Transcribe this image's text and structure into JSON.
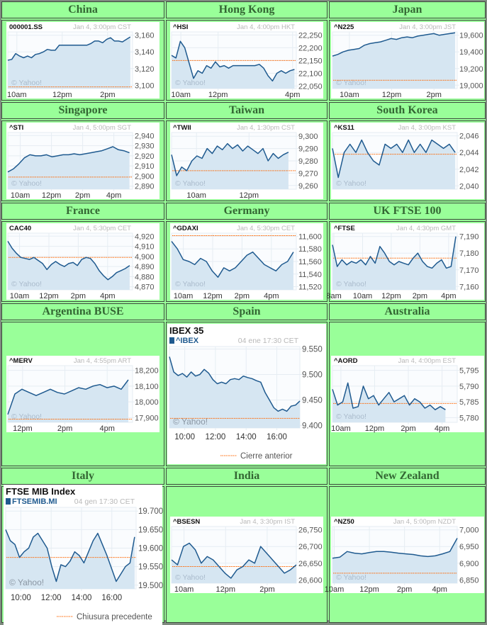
{
  "colors": {
    "header_bg": "#99ff99",
    "header_text": "#336633",
    "line": "#1f5a8f",
    "fill": "#d6e6f2",
    "prev_close": "#ff6600",
    "grid": "#e6edf3"
  },
  "watermark": "© Yahoo!",
  "chart_data": [
    {
      "type": "line",
      "region": "China",
      "ticker": "000001.SS",
      "timestamp": "Jan 4, 3:00pm CST",
      "format": "std",
      "ylim": [
        3096,
        3164
      ],
      "yticks": [
        3160,
        3140,
        3120,
        3100
      ],
      "ytick_labels": [
        "3,160",
        "3,140",
        "3,120",
        "3,100"
      ],
      "prev_close": 3098,
      "xlim": [
        9.6,
        15.1
      ],
      "xticks": [
        {
          "t": 10,
          "label": "10am"
        },
        {
          "t": 12,
          "label": "12pm"
        },
        {
          "t": 14,
          "label": "2pm"
        }
      ],
      "data_end": 15.0,
      "values": [
        3130,
        3131,
        3138,
        3135,
        3133,
        3135,
        3133,
        3137,
        3138,
        3140,
        3143,
        3142,
        3142,
        3148,
        3148,
        3148,
        3148,
        3148,
        3148,
        3148,
        3148,
        3150,
        3153,
        3153,
        3151,
        3155,
        3157,
        3153,
        3153,
        3152,
        3155,
        3158
      ]
    },
    {
      "type": "line",
      "region": "Hong Kong",
      "ticker": "^HSI",
      "timestamp": "Jan 4, 4:00pm HKT",
      "format": "std",
      "ylim": [
        22040,
        22262
      ],
      "yticks": [
        22250,
        22200,
        22150,
        22100,
        22050
      ],
      "ytick_labels": [
        "22,250",
        "22,200",
        "22,150",
        "22,100",
        "22,050"
      ],
      "prev_close": 22150,
      "xlim": [
        9.5,
        16.2
      ],
      "xticks": [
        {
          "t": 10,
          "label": "10am"
        },
        {
          "t": 12,
          "label": "12pm"
        },
        {
          "t": 16,
          "label": "4pm"
        }
      ],
      "data_end": 16.1,
      "values": [
        22170,
        22160,
        22225,
        22200,
        22140,
        22080,
        22110,
        22100,
        22130,
        22120,
        22145,
        22125,
        22130,
        22120,
        22130,
        22130,
        22130,
        22130,
        22130,
        22130,
        22135,
        22120,
        22090,
        22070,
        22100,
        22110,
        22100,
        22110,
        22115
      ]
    },
    {
      "type": "line",
      "region": "Japan",
      "ticker": "^N225",
      "timestamp": "Jan 4, 3:00pm JST",
      "format": "std",
      "ylim": [
        18960,
        19640
      ],
      "yticks": [
        19600,
        19400,
        19200,
        19000
      ],
      "ytick_labels": [
        "19,600",
        "19,400",
        "19,200",
        "19,000"
      ],
      "prev_close": 19060,
      "xlim": [
        9.2,
        15.1
      ],
      "xticks": [
        {
          "t": 10,
          "label": "10am"
        },
        {
          "t": 12,
          "label": "12pm"
        },
        {
          "t": 14,
          "label": "2pm"
        }
      ],
      "data_end": 15.0,
      "values": [
        19350,
        19370,
        19400,
        19420,
        19430,
        19440,
        19480,
        19500,
        19510,
        19520,
        19540,
        19560,
        19550,
        19570,
        19580,
        19570,
        19590,
        19600,
        19610,
        19620,
        19600,
        19610,
        19620,
        19630
      ]
    },
    {
      "type": "line",
      "region": "Singapore",
      "ticker": "^STI",
      "timestamp": "Jan 4, 5:00pm SGT",
      "format": "std",
      "ylim": [
        2887,
        2943
      ],
      "yticks": [
        2940,
        2930,
        2920,
        2910,
        2900,
        2890
      ],
      "ytick_labels": [
        "2,940",
        "2,930",
        "2,920",
        "2,910",
        "2,900",
        "2,890"
      ],
      "prev_close": 2899,
      "xlim": [
        9.2,
        17.2
      ],
      "xticks": [
        {
          "t": 10,
          "label": "10am"
        },
        {
          "t": 12,
          "label": "12pm"
        },
        {
          "t": 14,
          "label": "2pm"
        },
        {
          "t": 16,
          "label": "4pm"
        }
      ],
      "data_end": 17.0,
      "values": [
        2904,
        2907,
        2912,
        2918,
        2921,
        2920,
        2920,
        2921,
        2919,
        2920,
        2921,
        2921,
        2922,
        2921,
        2922,
        2923,
        2924,
        2925,
        2927,
        2929,
        2926,
        2925,
        2923
      ]
    },
    {
      "type": "line",
      "region": "Taiwan",
      "ticker": "^TWII",
      "timestamp": "Jan 4, 1:30pm CST",
      "format": "std",
      "ylim": [
        9257,
        9303
      ],
      "yticks": [
        9300,
        9290,
        9280,
        9270,
        9260
      ],
      "ytick_labels": [
        "9,300",
        "9,290",
        "9,280",
        "9,270",
        "9,260"
      ],
      "prev_close": 9272,
      "xlim": [
        9.05,
        13.8
      ],
      "xticks": [
        {
          "t": 10,
          "label": "10am"
        },
        {
          "t": 12,
          "label": "12pm"
        }
      ],
      "data_end": 13.5,
      "values": [
        9285,
        9268,
        9275,
        9272,
        9280,
        9284,
        9282,
        9290,
        9286,
        9292,
        9289,
        9294,
        9290,
        9293,
        9288,
        9292,
        9289,
        9286,
        9290,
        9280,
        9286,
        9282,
        9285,
        9287
      ]
    },
    {
      "type": "line",
      "region": "South Korea",
      "ticker": "^KS11",
      "timestamp": "Jan 4, 3:00pm KST",
      "format": "std",
      "ylim": [
        2039.6,
        2046.4
      ],
      "yticks": [
        2046,
        2044,
        2042,
        2040
      ],
      "ytick_labels": [
        "2,046",
        "2,044",
        "2,042",
        "2,040"
      ],
      "prev_close": 2043.8,
      "xlim": [
        9.0,
        15.1
      ],
      "xticks": [],
      "data_end": 15.0,
      "values": [
        2044.5,
        2041,
        2044,
        2045,
        2044,
        2045.5,
        2044,
        2043,
        2042.5,
        2045,
        2044.5,
        2045,
        2044,
        2045.5,
        2044,
        2045,
        2044,
        2045.5,
        2045,
        2044.5,
        2045,
        2044
      ]
    },
    {
      "type": "line",
      "region": "France",
      "ticker": "CAC40",
      "timestamp": "Jan 4, 5:30pm CET",
      "format": "std",
      "ylim": [
        4867,
        4923
      ],
      "yticks": [
        4920,
        4910,
        4900,
        4890,
        4880,
        4870
      ],
      "ytick_labels": [
        "4,920",
        "4,910",
        "4,900",
        "4,890",
        "4,880",
        "4,870"
      ],
      "prev_close": 4899,
      "xlim": [
        9.2,
        17.7
      ],
      "xticks": [
        {
          "t": 10,
          "label": "10am"
        },
        {
          "t": 12,
          "label": "12pm"
        },
        {
          "t": 14,
          "label": "2pm"
        },
        {
          "t": 16,
          "label": "4pm"
        }
      ],
      "data_end": 17.5,
      "values": [
        4915,
        4908,
        4903,
        4899,
        4898,
        4897,
        4899,
        4896,
        4893,
        4887,
        4892,
        4895,
        4892,
        4890,
        4893,
        4894,
        4891,
        4897,
        4899,
        4898,
        4893,
        4886,
        4881,
        4877,
        4880,
        4884,
        4886,
        4888,
        4891
      ]
    },
    {
      "type": "line",
      "region": "Germany",
      "ticker": "^GDAXI",
      "timestamp": "Jan 4, 5:30pm CET",
      "format": "std",
      "ylim": [
        11515,
        11605
      ],
      "yticks": [
        11600,
        11580,
        11560,
        11540,
        11520
      ],
      "ytick_labels": [
        "11,600",
        "11,580",
        "11,560",
        "11,540",
        "11,520"
      ],
      "prev_close": 11601,
      "xlim": [
        9.2,
        17.7
      ],
      "xticks": [
        {
          "t": 10,
          "label": "10am"
        },
        {
          "t": 12,
          "label": "12pm"
        },
        {
          "t": 14,
          "label": "2pm"
        },
        {
          "t": 16,
          "label": "4pm"
        }
      ],
      "data_end": 17.5,
      "values": [
        11592,
        11580,
        11563,
        11560,
        11555,
        11565,
        11560,
        11545,
        11535,
        11550,
        11545,
        11550,
        11560,
        11570,
        11575,
        11565,
        11555,
        11550,
        11545,
        11555,
        11560,
        11575
      ]
    },
    {
      "type": "line",
      "region": "UK FTSE 100",
      "ticker": "^FTSE",
      "timestamp": "Jan 4, 4:30pm GMT",
      "format": "std",
      "ylim": [
        7158,
        7192
      ],
      "yticks": [
        7190,
        7180,
        7170,
        7160
      ],
      "ytick_labels": [
        "7,190",
        "7,180",
        "7,170",
        "7,160"
      ],
      "prev_close": 7177,
      "xlim": [
        7.9,
        16.6
      ],
      "xticks": [
        {
          "t": 8,
          "label": "8am"
        },
        {
          "t": 10,
          "label": "10am"
        },
        {
          "t": 12,
          "label": "12pm"
        },
        {
          "t": 14,
          "label": "2pm"
        },
        {
          "t": 16,
          "label": "4pm"
        }
      ],
      "data_end": 16.5,
      "values": [
        7185,
        7172,
        7176,
        7173,
        7175,
        7174,
        7176,
        7173,
        7178,
        7174,
        7184,
        7180,
        7175,
        7173,
        7175,
        7174,
        7173,
        7177,
        7180,
        7175,
        7172,
        7171,
        7174,
        7176,
        7171,
        7172,
        7190
      ]
    },
    {
      "type": "line",
      "region": "Argentina BUSE",
      "ticker": "^MERV",
      "timestamp": "Jan 4, 4:55pm ART",
      "format": "std",
      "ylim": [
        17870,
        18230
      ],
      "yticks": [
        18200,
        18100,
        18000,
        17900
      ],
      "ytick_labels": [
        "18,200",
        "18,100",
        "18,000",
        "17,900"
      ],
      "prev_close": 17890,
      "xlim": [
        11.3,
        17.2
      ],
      "xticks": [
        {
          "t": 12,
          "label": "12pm"
        },
        {
          "t": 14,
          "label": "2pm"
        },
        {
          "t": 16,
          "label": "4pm"
        }
      ],
      "data_end": 17.0,
      "values": [
        17920,
        18050,
        18080,
        18060,
        18040,
        18060,
        18080,
        18060,
        18050,
        18070,
        18090,
        18080,
        18100,
        18110,
        18090,
        18100,
        18080,
        18140
      ]
    },
    {
      "type": "line",
      "region": "Spain",
      "title": "IBEX 35",
      "ticker": "^IBEX",
      "timestamp": "04 ene 17:30 CET",
      "format": "big",
      "legend": "Cierre anterior",
      "ylim": [
        9395,
        9555
      ],
      "yticks": [
        9550,
        9500,
        9450,
        9400
      ],
      "ytick_labels": [
        "9.550",
        "9.500",
        "9.450",
        "9.400"
      ],
      "prev_close": 9414,
      "xlim": [
        9.0,
        17.5
      ],
      "xticks": [
        {
          "t": 10,
          "label": "10:00"
        },
        {
          "t": 12,
          "label": "12:00"
        },
        {
          "t": 14,
          "label": "14:00"
        },
        {
          "t": 16,
          "label": "16:00"
        }
      ],
      "data_end": 17.5,
      "values": [
        9535,
        9505,
        9498,
        9502,
        9495,
        9505,
        9497,
        9500,
        9510,
        9503,
        9490,
        9482,
        9485,
        9482,
        9490,
        9492,
        9490,
        9497,
        9494,
        9492,
        9488,
        9485,
        9465,
        9450,
        9435,
        9428,
        9432,
        9428,
        9438,
        9440,
        9448
      ]
    },
    {
      "type": "line",
      "region": "Australia",
      "ticker": "^AORD",
      "timestamp": "Jan 4, 4:00pm EST",
      "format": "std",
      "ylim": [
        5778.5,
        5796.5
      ],
      "yticks": [
        5795,
        5790,
        5785,
        5780
      ],
      "ytick_labels": [
        "5,795",
        "5,790",
        "5,785",
        "5,780"
      ],
      "prev_close": 5784.5,
      "xlim": [
        9.5,
        16.9
      ],
      "xticks": [
        {
          "t": 10,
          "label": "10am"
        },
        {
          "t": 12,
          "label": "12pm"
        },
        {
          "t": 14,
          "label": "2pm"
        },
        {
          "t": 16,
          "label": "4pm"
        }
      ],
      "data_end": 16.2,
      "values": [
        5789,
        5784,
        5785,
        5791,
        5783,
        5783.5,
        5790,
        5786,
        5787,
        5784,
        5786,
        5788,
        5785,
        5786,
        5787,
        5784,
        5786,
        5785,
        5783,
        5784,
        5782.5,
        5783.5,
        5782.5
      ]
    },
    {
      "type": "line",
      "region": "Italy",
      "title": "FTSE MIB Index",
      "ticker": "FTSEMIB.MI",
      "timestamp": "04 gen 17:30 CET",
      "format": "big",
      "legend": "Chiusura precedente",
      "ylim": [
        19490,
        19710
      ],
      "yticks": [
        19700,
        19650,
        19600,
        19550,
        19500
      ],
      "ytick_labels": [
        "19.700",
        "19.650",
        "19.600",
        "19.550",
        "19.500"
      ],
      "prev_close": 19575,
      "xlim": [
        9.0,
        17.6
      ],
      "xticks": [
        {
          "t": 10,
          "label": "10:00"
        },
        {
          "t": 12,
          "label": "12:00"
        },
        {
          "t": 14,
          "label": "14:00"
        },
        {
          "t": 16,
          "label": "16:00"
        }
      ],
      "data_end": 17.5,
      "values": [
        19650,
        19620,
        19610,
        19575,
        19590,
        19600,
        19630,
        19640,
        19620,
        19600,
        19550,
        19510,
        19555,
        19550,
        19565,
        19590,
        19580,
        19560,
        19590,
        19620,
        19640,
        19610,
        19580,
        19545,
        19510,
        19530,
        19550,
        19560,
        19630
      ]
    },
    {
      "type": "line",
      "region": "India",
      "ticker": "^BSESN",
      "timestamp": "Jan 4, 3:30pm IST",
      "format": "std",
      "ylim": [
        26590,
        26760
      ],
      "yticks": [
        26750,
        26700,
        26650,
        26600
      ],
      "ytick_labels": [
        "26,750",
        "26,700",
        "26,650",
        "26,600"
      ],
      "prev_close": 26640,
      "xlim": [
        9.4,
        15.4
      ],
      "xticks": [
        {
          "t": 10,
          "label": "10am"
        },
        {
          "t": 12,
          "label": "12pm"
        },
        {
          "t": 14,
          "label": "2pm"
        }
      ],
      "data_end": 15.4,
      "values": [
        26660,
        26645,
        26700,
        26710,
        26690,
        26650,
        26670,
        26660,
        26640,
        26620,
        26605,
        26630,
        26640,
        26660,
        26650,
        26700,
        26680,
        26660,
        26640,
        26620,
        26630,
        26645
      ]
    },
    {
      "type": "line",
      "region": "New Zealand",
      "ticker": "^NZ50",
      "timestamp": "Jan 4, 5:00pm NZDT",
      "format": "std",
      "ylim": [
        6840,
        7010
      ],
      "yticks": [
        7000,
        6950,
        6900,
        6850
      ],
      "ytick_labels": [
        "7,000",
        "6,950",
        "6,900",
        "6,850"
      ],
      "prev_close": 6870,
      "xlim": [
        9.9,
        17.0
      ],
      "xticks": [
        {
          "t": 10,
          "label": "10am"
        },
        {
          "t": 12,
          "label": "12pm"
        },
        {
          "t": 14,
          "label": "2pm"
        },
        {
          "t": 16,
          "label": "4pm"
        }
      ],
      "data_end": 17.0,
      "values": [
        6915,
        6918,
        6935,
        6930,
        6928,
        6932,
        6935,
        6935,
        6933,
        6930,
        6928,
        6926,
        6922,
        6920,
        6922,
        6928,
        6935,
        6975
      ]
    }
  ]
}
